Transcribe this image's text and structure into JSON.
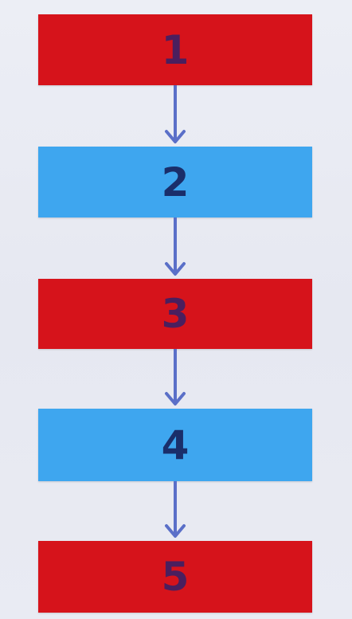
{
  "diagram": {
    "colors": {
      "red": "#d6131b",
      "blue": "#3ea6ef",
      "arrow": "#5a6fc8",
      "background": "#e8eaf2"
    },
    "steps": [
      {
        "label": "1",
        "color": "red"
      },
      {
        "label": "2",
        "color": "blue"
      },
      {
        "label": "3",
        "color": "red"
      },
      {
        "label": "4",
        "color": "blue"
      },
      {
        "label": "5",
        "color": "red"
      }
    ]
  }
}
